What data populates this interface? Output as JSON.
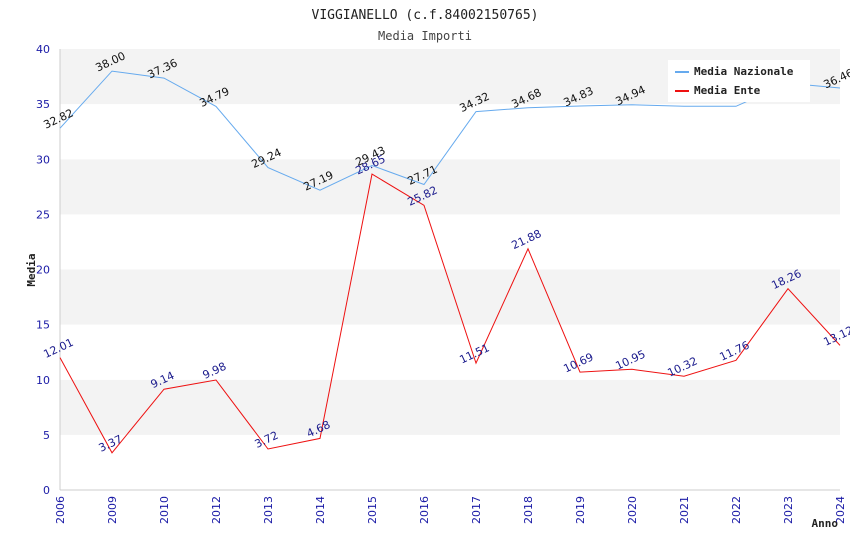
{
  "chart_data": {
    "type": "line",
    "title": "VIGGIANELLO (c.f.84002150765)",
    "subtitle": "Media Importi",
    "xlabel": "Anno",
    "ylabel": "Media",
    "ylim": [
      0,
      40
    ],
    "yticks": [
      "0",
      "5",
      "10",
      "15",
      "20",
      "25",
      "30",
      "35",
      "40"
    ],
    "categories": [
      "2006",
      "2009",
      "2010",
      "2012",
      "2013",
      "2014",
      "2015",
      "2016",
      "2017",
      "2018",
      "2019",
      "2020",
      "2021",
      "2022",
      "2023",
      "2024"
    ],
    "series": [
      {
        "name": "Media Nazionale",
        "color": "#66aaee",
        "label_color": "#111111",
        "values": [
          32.82,
          38.0,
          37.36,
          34.79,
          29.24,
          27.19,
          29.43,
          27.71,
          34.32,
          34.68,
          34.83,
          34.94,
          34.8,
          34.8,
          36.9,
          36.46
        ],
        "labels": [
          "32.82",
          "38.00",
          "37.36",
          "34.79",
          "29.24",
          "27.19",
          "29.43",
          "27.71",
          "34.32",
          "34.68",
          "34.83",
          "34.94",
          "",
          "",
          "",
          "36.46"
        ]
      },
      {
        "name": "Media Ente",
        "color": "#ee1111",
        "label_color": "#1a1a8c",
        "values": [
          12.01,
          3.37,
          9.14,
          9.98,
          3.72,
          4.68,
          28.65,
          25.82,
          11.51,
          21.88,
          10.69,
          10.95,
          10.32,
          11.76,
          18.26,
          13.12
        ],
        "labels": [
          "12.01",
          "3.37",
          "9.14",
          "9.98",
          "3.72",
          "4.68",
          "28.65",
          "25.82",
          "11.51",
          "21.88",
          "10.69",
          "10.95",
          "10.32",
          "11.76",
          "18.26",
          "13.12"
        ]
      }
    ],
    "legend_position": "top-right",
    "grid": true
  }
}
